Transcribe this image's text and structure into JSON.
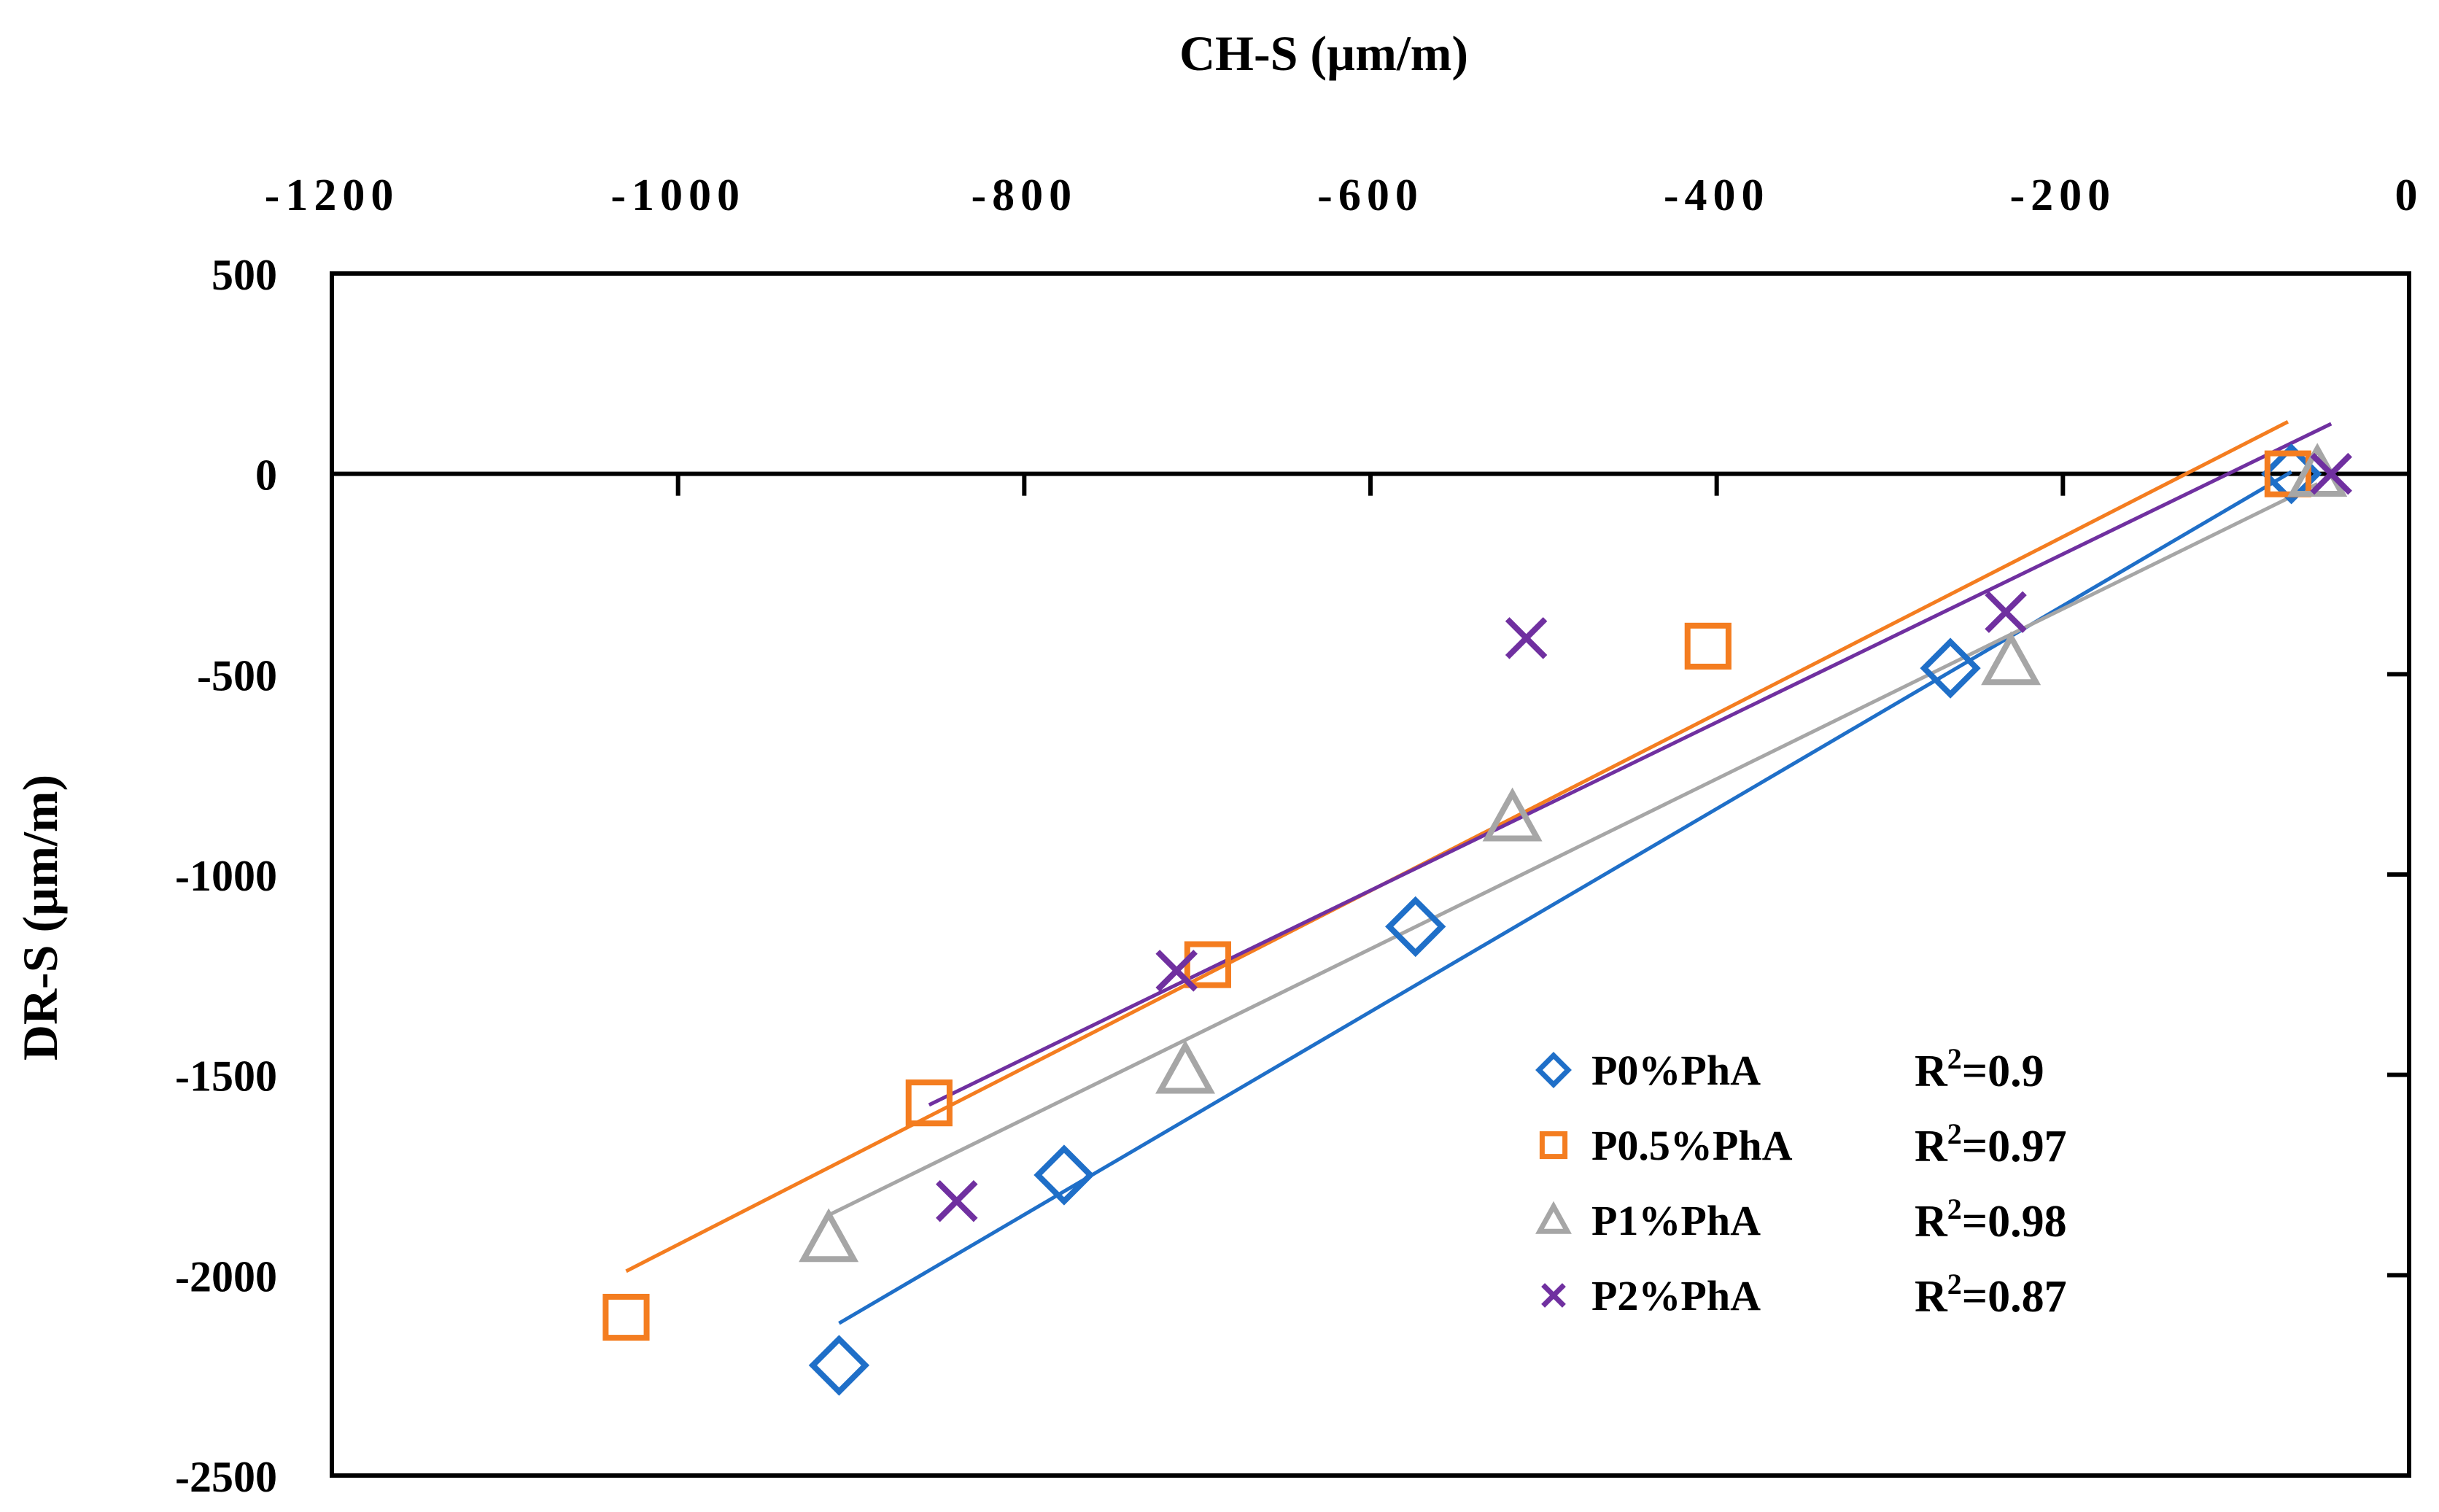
{
  "chart_data": {
    "type": "scatter",
    "xlabel": "CH-S (µm/m)",
    "ylabel": "DR-S (µm/m)",
    "xlim": [
      -1200,
      0
    ],
    "ylim": [
      -2500,
      500
    ],
    "x_ticks": [
      "-1200",
      "-1000",
      "-800",
      "-600",
      "-400",
      "-200",
      "0"
    ],
    "y_ticks": [
      "500",
      "0",
      "-500",
      "-1000",
      "-1500",
      "-2000",
      "-2500"
    ],
    "x_tick_values": [
      -1200,
      -1000,
      -800,
      -600,
      -400,
      -200,
      0
    ],
    "y_tick_values": [
      500,
      0,
      -500,
      -1000,
      -1500,
      -2000,
      -2500
    ],
    "x_axis_position": "top",
    "legend_position": "bottom-right",
    "series": [
      {
        "name": "P0%PhA",
        "r2": "R2=0.9",
        "r2_prefix": "R",
        "r2_sup": "2",
        "r2_value": "=0.9",
        "marker": "diamond",
        "color": "#1f6fc8",
        "points": [
          [
            -907,
            -2225
          ],
          [
            -777,
            -1750
          ],
          [
            -574,
            -1130
          ],
          [
            -265,
            -485
          ],
          [
            -68,
            0
          ]
        ],
        "trend": [
          [
            -907,
            -2120
          ],
          [
            -68,
            5
          ]
        ]
      },
      {
        "name": "P0.5%PhA",
        "r2": "R2=0.97",
        "r2_prefix": "R",
        "r2_sup": "2",
        "r2_value": "=0.97",
        "marker": "square",
        "color": "#f47d20",
        "points": [
          [
            -1030,
            -2105
          ],
          [
            -855,
            -1570
          ],
          [
            -694,
            -1225
          ],
          [
            -405,
            -430
          ],
          [
            -70,
            0
          ]
        ],
        "trend": [
          [
            -1030,
            -1990
          ],
          [
            -70,
            130
          ]
        ]
      },
      {
        "name": "P1%PhA",
        "r2": "R2=0.98",
        "r2_prefix": "R",
        "r2_sup": "2",
        "r2_value": "=0.98",
        "marker": "triangle",
        "color": "#a6a6a6",
        "points": [
          [
            -913,
            -1910
          ],
          [
            -707,
            -1490
          ],
          [
            -518,
            -860
          ],
          [
            -230,
            -470
          ],
          [
            -53,
            0
          ]
        ],
        "trend": [
          [
            -913,
            -1850
          ],
          [
            -53,
            -25
          ]
        ]
      },
      {
        "name": "P2%PhA",
        "r2": "R2=0.87",
        "r2_prefix": "R",
        "r2_sup": "2",
        "r2_value": "=0.87",
        "marker": "x",
        "color": "#7030a0",
        "points": [
          [
            -839,
            -1815
          ],
          [
            -712,
            -1240
          ],
          [
            -510,
            -410
          ],
          [
            -233,
            -345
          ],
          [
            -45,
            0
          ]
        ],
        "trend": [
          [
            -855,
            -1575
          ],
          [
            -45,
            125
          ]
        ]
      }
    ]
  }
}
